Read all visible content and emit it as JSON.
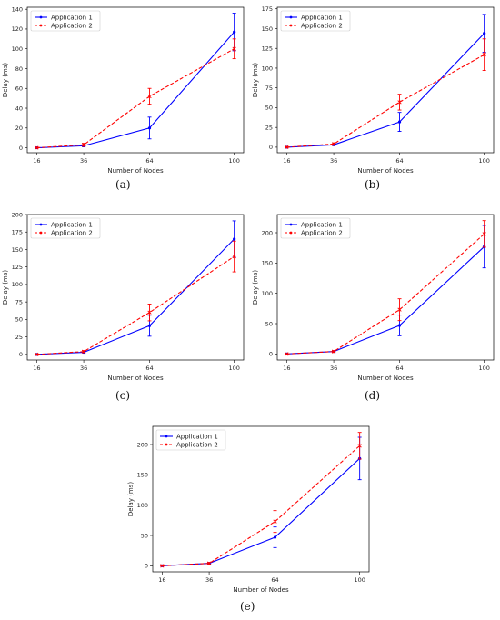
{
  "chart_data": [
    {
      "type": "line",
      "caption": "(a)",
      "xlabel": "Number of Nodes",
      "ylabel": "Delay (ms)",
      "categories": [
        "16",
        "36",
        "64",
        "100"
      ],
      "ylim": [
        -5,
        142
      ],
      "yticks": [
        0,
        20,
        40,
        60,
        80,
        100,
        120,
        140
      ],
      "legend": "top-left",
      "series": [
        {
          "name": "Application 1",
          "color": "#0000ff",
          "style": "solid",
          "marker": "dot",
          "values": [
            0,
            2,
            20,
            117
          ],
          "errors": [
            0.5,
            1,
            11,
            19
          ]
        },
        {
          "name": "Application 2",
          "color": "#ff0000",
          "style": "dashed",
          "marker": "x",
          "values": [
            0,
            3,
            52,
            100
          ],
          "errors": [
            0.5,
            1.5,
            8,
            10
          ]
        }
      ]
    },
    {
      "type": "line",
      "caption": "(b)",
      "xlabel": "Number of Nodes",
      "ylabel": "Delay (ms)",
      "categories": [
        "16",
        "36",
        "64",
        "100"
      ],
      "ylim": [
        -7,
        177
      ],
      "yticks": [
        0,
        25,
        50,
        75,
        100,
        125,
        150,
        175
      ],
      "legend": "top-left",
      "series": [
        {
          "name": "Application 1",
          "color": "#0000ff",
          "style": "solid",
          "marker": "dot",
          "values": [
            0,
            3,
            32,
            144
          ],
          "errors": [
            0.5,
            1,
            12,
            24
          ]
        },
        {
          "name": "Application 2",
          "color": "#ff0000",
          "style": "dashed",
          "marker": "x",
          "values": [
            0,
            4,
            57,
            117
          ],
          "errors": [
            0.5,
            1.5,
            10,
            20
          ]
        }
      ]
    },
    {
      "type": "line",
      "caption": "(c)",
      "xlabel": "Number of Nodes",
      "ylabel": "Delay (ms)",
      "categories": [
        "16",
        "36",
        "64",
        "100"
      ],
      "ylim": [
        -8,
        200
      ],
      "yticks": [
        0,
        25,
        50,
        75,
        100,
        125,
        150,
        175,
        200
      ],
      "legend": "top-left",
      "series": [
        {
          "name": "Application 1",
          "color": "#0000ff",
          "style": "solid",
          "marker": "dot",
          "values": [
            0,
            3,
            41,
            165
          ],
          "errors": [
            0.5,
            1,
            15,
            26
          ]
        },
        {
          "name": "Application 2",
          "color": "#ff0000",
          "style": "dashed",
          "marker": "x",
          "values": [
            0,
            4,
            60,
            140
          ],
          "errors": [
            0.5,
            1.5,
            12,
            22
          ]
        }
      ]
    },
    {
      "type": "line",
      "caption": "(d)",
      "xlabel": "Number of Nodes",
      "ylabel": "Delay (ms)",
      "categories": [
        "16",
        "36",
        "64",
        "100"
      ],
      "ylim": [
        -10,
        230
      ],
      "yticks": [
        0,
        50,
        100,
        150,
        200
      ],
      "legend": "top-left",
      "series": [
        {
          "name": "Application 1",
          "color": "#0000ff",
          "style": "solid",
          "marker": "dot",
          "values": [
            0,
            4,
            47,
            177
          ],
          "errors": [
            0.5,
            1,
            17,
            35
          ]
        },
        {
          "name": "Application 2",
          "color": "#ff0000",
          "style": "dashed",
          "marker": "x",
          "values": [
            0,
            4,
            73,
            198
          ],
          "errors": [
            0.5,
            1.5,
            18,
            22
          ]
        }
      ]
    },
    {
      "type": "line",
      "caption": "(e)",
      "xlabel": "Number of Nodes",
      "ylabel": "Delay (ms)",
      "categories": [
        "16",
        "36",
        "64",
        "100"
      ],
      "ylim": [
        -10,
        230
      ],
      "yticks": [
        0,
        50,
        100,
        150,
        200
      ],
      "legend": "top-left",
      "series": [
        {
          "name": "Application 1",
          "color": "#0000ff",
          "style": "solid",
          "marker": "dot",
          "values": [
            0,
            4,
            47,
            177
          ],
          "errors": [
            0.5,
            1,
            17,
            35
          ]
        },
        {
          "name": "Application 2",
          "color": "#ff0000",
          "style": "dashed",
          "marker": "x",
          "values": [
            0,
            4,
            73,
            198
          ],
          "errors": [
            0.5,
            1.5,
            18,
            22
          ]
        }
      ]
    }
  ]
}
